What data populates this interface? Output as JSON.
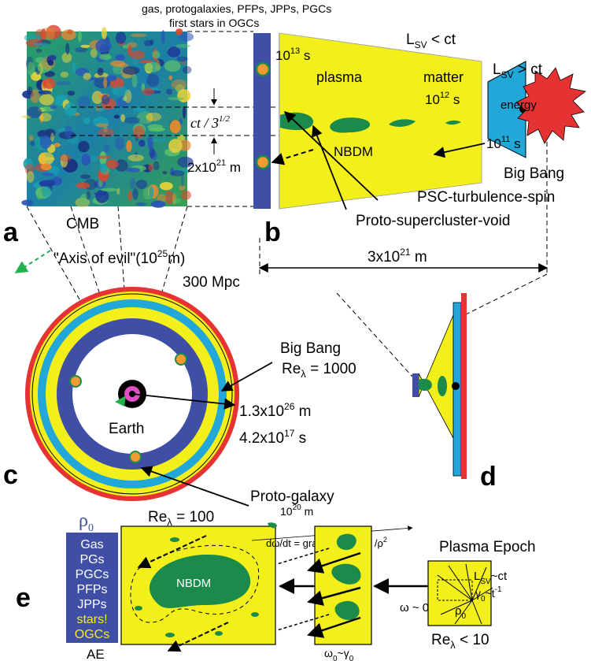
{
  "panels": {
    "a": "a",
    "b": "b",
    "c": "c",
    "d": "d",
    "e": "e"
  },
  "top": {
    "line1": "gas, protogalaxies, PFPs,  JPPs, PGCs",
    "line2": "first stars in OGCs"
  },
  "panel_a": {
    "cmb": "CMB",
    "ct_label": "ct / 3",
    "ct_exp": "1/2",
    "dist_base": "2x10",
    "dist_exp": "21",
    "dist_unit": " m"
  },
  "panel_b": {
    "lsv_top_base": "L",
    "lsv_sub": "SV",
    "lsv_top_rel": " < ct",
    "lsv_right_rel": " > ct",
    "t13_base": "10",
    "t13_exp": "13",
    "t13_unit": " s",
    "plasma": "plasma",
    "matter": "matter",
    "t12_base": "10",
    "t12_exp": "12",
    "t12_unit": " s",
    "energy": "energy",
    "t11_base": "10",
    "t11_exp": "11",
    "t11_unit": " s",
    "nbdm": "NBDM",
    "big_bang": "Big Bang",
    "psc": "PSC-turbulence-spin",
    "proto_sc": "Proto-supercluster-void"
  },
  "middle": {
    "axis": "\"Axis of evil\"(10",
    "axis_exp": "25",
    "axis_unit": "m)",
    "mpc": "300 Mpc",
    "span_base": "3x10",
    "span_exp": "21",
    "span_unit": " m"
  },
  "panel_c": {
    "big_bang": "Big Bang",
    "re_label": "Re",
    "re_value": " = 1000",
    "r_base": "1.3x10",
    "r_exp": "26",
    "r_unit": " m",
    "t_base": "4.2x10",
    "t_exp": "17",
    "t_unit": " s",
    "earth": "Earth",
    "proto_galaxy": "Proto-galaxy"
  },
  "panel_e": {
    "rho": "ρ",
    "rho_sub": "0",
    "legend": [
      "Gas",
      "PGs",
      "PGCs",
      "PFPs",
      "JPPs",
      "stars!",
      "OGCs"
    ],
    "re_label": "Re",
    "re_value": " = 100",
    "size_base": "10",
    "size_exp": "20",
    "size_unit": " m",
    "nbdm": "NBDM",
    "ae": "AE",
    "equation": "dω/dt = grad ρ x grad p /ρ",
    "equation_exp": "2",
    "plasma_epoch": "Plasma Epoch",
    "lsv": "L",
    "lsv_sub": "SV",
    "lsv_rel": "~ct",
    "gamma": "γ",
    "gamma_sub": "0",
    "gamma_rel": "~t",
    "gamma_exp": "-1",
    "omega_rel": "ω ~ 0",
    "rho0": "ρ",
    "rho0_sub": "0",
    "omega_gamma": "ω",
    "omega_gamma_sub": "0",
    "omega_gamma_rel": "~γ",
    "omega_gamma_sub2": "0",
    "re_small_label": "Re",
    "re_small_value": " < 10"
  },
  "colors": {
    "yellow": "#f3ef1b",
    "blue": "#3f4fa6",
    "cyan": "#21a8d8",
    "red": "#e63232",
    "green": "#1b8a4a",
    "orange": "#f49a33",
    "magenta": "#e24ec6"
  }
}
